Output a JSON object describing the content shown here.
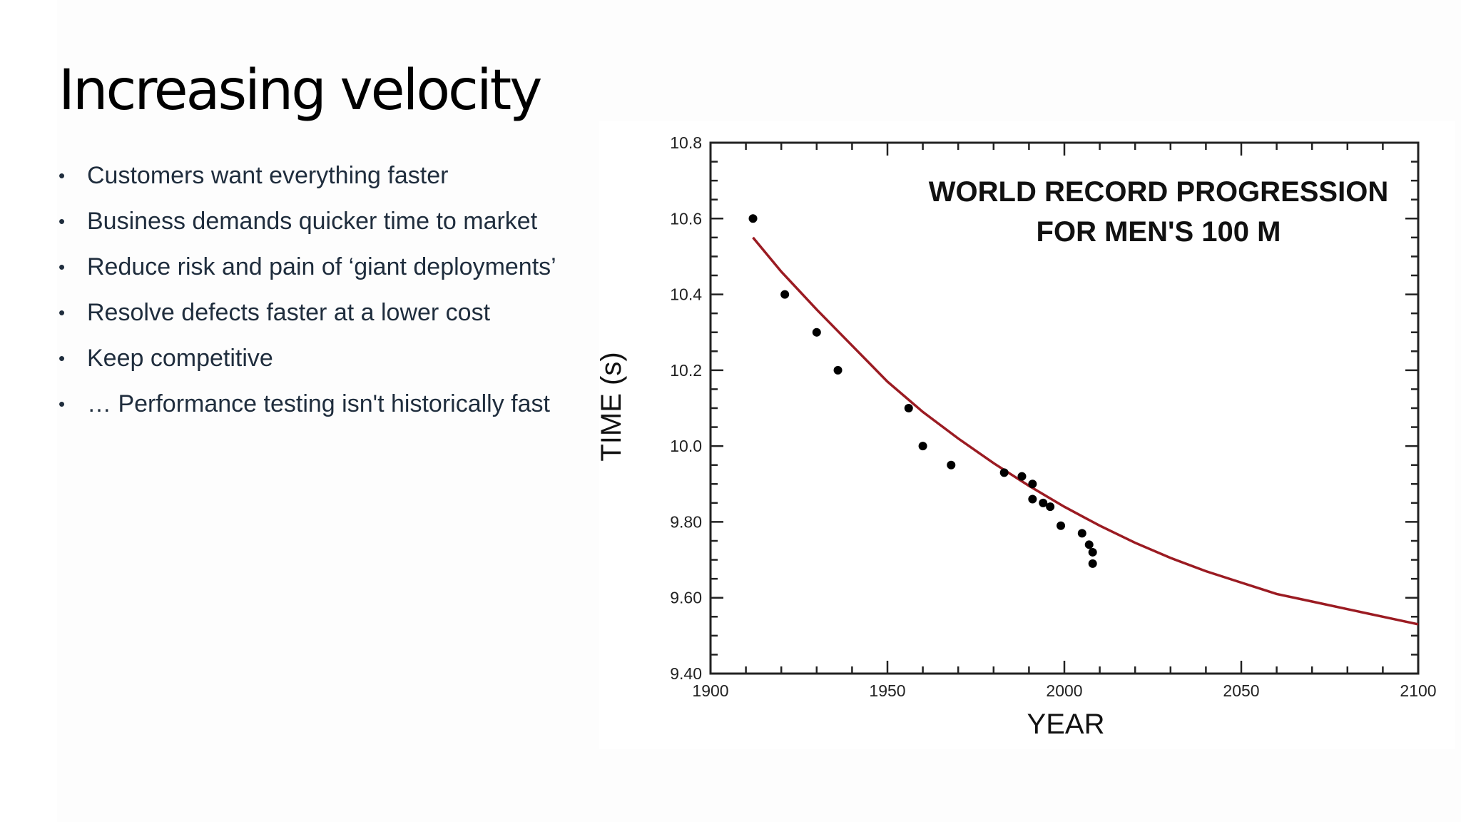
{
  "slide": {
    "title": "Increasing velocity",
    "bullets": [
      "Customers want everything faster",
      "Business demands quicker time to market",
      "Reduce risk and pain of ‘giant deployments’",
      "Resolve defects faster at a lower cost",
      "Keep competitive",
      "… Performance testing isn't historically fast"
    ]
  },
  "chart_data": {
    "type": "scatter",
    "title_lines": [
      "WORLD RECORD PROGRESSION",
      "FOR MEN'S 100 M"
    ],
    "xlabel": "YEAR",
    "ylabel": "TIME (s)",
    "xlim": [
      1900,
      2100
    ],
    "ylim": [
      9.4,
      10.8
    ],
    "x_ticks": [
      "1900",
      "1950",
      "2000",
      "2050",
      "2100"
    ],
    "y_ticks": [
      "9.40",
      "9.60",
      "9.80",
      "10.0",
      "10.2",
      "10.4",
      "10.6",
      "10.8"
    ],
    "grid": false,
    "points": [
      {
        "x": 1912,
        "y": 10.6
      },
      {
        "x": 1921,
        "y": 10.4
      },
      {
        "x": 1930,
        "y": 10.3
      },
      {
        "x": 1936,
        "y": 10.2
      },
      {
        "x": 1956,
        "y": 10.1
      },
      {
        "x": 1960,
        "y": 10.0
      },
      {
        "x": 1968,
        "y": 9.95
      },
      {
        "x": 1983,
        "y": 9.93
      },
      {
        "x": 1988,
        "y": 9.92
      },
      {
        "x": 1991,
        "y": 9.9
      },
      {
        "x": 1991,
        "y": 9.86
      },
      {
        "x": 1994,
        "y": 9.85
      },
      {
        "x": 1996,
        "y": 9.84
      },
      {
        "x": 1999,
        "y": 9.79
      },
      {
        "x": 2005,
        "y": 9.77
      },
      {
        "x": 2007,
        "y": 9.74
      },
      {
        "x": 2008,
        "y": 9.72
      },
      {
        "x": 2008,
        "y": 9.69
      }
    ],
    "fit_curve": {
      "color": "#9b1b22",
      "x": [
        1912,
        1920,
        1930,
        1940,
        1950,
        1960,
        1970,
        1980,
        1990,
        2000,
        2010,
        2020,
        2030,
        2040,
        2050,
        2060,
        2070,
        2080,
        2090,
        2100
      ],
      "y": [
        10.55,
        10.46,
        10.36,
        10.265,
        10.17,
        10.09,
        10.02,
        9.955,
        9.895,
        9.84,
        9.79,
        9.745,
        9.705,
        9.67,
        9.64,
        9.61,
        9.59,
        9.57,
        9.55,
        9.53
      ]
    },
    "marker_color": "#000000"
  }
}
